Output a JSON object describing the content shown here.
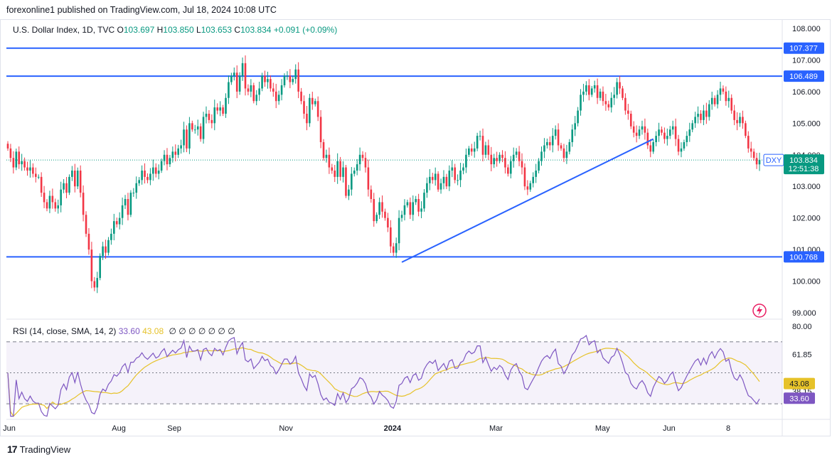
{
  "header": {
    "published": "forexonline1 published on TradingView.com, Jul 18, 2024 10:08 UTC"
  },
  "legend": {
    "symbol": "U.S. Dollar Index, 1D, TVC",
    "open_label": "O",
    "open": "103.697",
    "high_label": "H",
    "high": "103.850",
    "low_label": "L",
    "low": "103.653",
    "close_label": "C",
    "close": "103.834",
    "change": "+0.091 (+0.09%)"
  },
  "rsi_legend": {
    "label": "RSI (14, close, SMA, 14, 2)",
    "rsi": "33.60",
    "sma": "43.08",
    "na": "∅ ∅ ∅ ∅ ∅ ∅ ∅"
  },
  "footer": {
    "logo": "17",
    "brand": "TradingView"
  },
  "colors": {
    "up": "#089981",
    "down": "#f23645",
    "level": "#2962ff",
    "rsi": "#7e57c2",
    "sma": "#e6c229",
    "rsi_band": "#7e57c2"
  },
  "chart_data": [
    {
      "type": "candlestick",
      "title": "U.S. Dollar Index, 1D, TVC",
      "symbol": "DXY",
      "last_price": "103.834",
      "countdown": "12:51:38",
      "ylim": [
        99.0,
        108.0
      ],
      "y_ticks": [
        "108.000",
        "107.000",
        "106.000",
        "105.000",
        "104.000",
        "103.000",
        "102.000",
        "101.000",
        "100.000",
        "99.000"
      ],
      "x_ticks": [
        "Jun",
        "Aug",
        "Sep",
        "Nov",
        "2024",
        "Mar",
        "May",
        "Jun",
        "8"
      ],
      "horizontal_levels": [
        {
          "value": 107.377,
          "label": "107.377"
        },
        {
          "value": 106.489,
          "label": "106.489"
        },
        {
          "value": 100.768,
          "label": "100.768"
        }
      ],
      "trendline": {
        "from": {
          "date": "2023-12-28",
          "value": 100.6
        },
        "to": {
          "date": "2024-05-20",
          "value": 104.5
        }
      },
      "closes": [
        104.2,
        103.9,
        103.6,
        104.1,
        103.7,
        103.8,
        103.6,
        103.5,
        103.6,
        103.4,
        103.3,
        103.3,
        102.8,
        102.5,
        102.3,
        102.7,
        102.5,
        102.3,
        102.4,
        102.9,
        103.1,
        102.8,
        103.3,
        103.5,
        103.0,
        103.5,
        102.8,
        102.1,
        101.5,
        101.0,
        100.0,
        99.8,
        100.1,
        100.8,
        101.1,
        100.9,
        101.3,
        101.5,
        101.9,
        101.8,
        102.0,
        102.4,
        102.6,
        102.1,
        102.8,
        102.8,
        103.1,
        103.2,
        103.5,
        103.3,
        103.2,
        103.4,
        103.6,
        103.4,
        103.5,
        103.8,
        104.0,
        103.7,
        103.9,
        104.1,
        104.0,
        104.2,
        104.3,
        104.8,
        104.2,
        105.0,
        104.8,
        104.8,
        104.9,
        104.5,
        105.2,
        105.3,
        105.1,
        105.0,
        105.5,
        105.4,
        105.5,
        105.3,
        105.8,
        106.3,
        106.5,
        106.6,
        106.0,
        106.5,
        106.9,
        106.1,
        106.0,
        106.2,
        105.7,
        105.9,
        106.1,
        106.5,
        106.3,
        106.4,
        106.1,
        106.0,
        105.7,
        105.9,
        106.2,
        106.5,
        106.5,
        106.3,
        106.4,
        106.7,
        106.0,
        105.7,
        105.3,
        105.0,
        105.8,
        105.6,
        105.7,
        105.2,
        104.4,
        103.9,
        104.0,
        103.6,
        103.5,
        103.3,
        103.8,
        103.3,
        103.6,
        102.7,
        102.9,
        103.4,
        103.5,
        103.7,
        104.0,
        103.9,
        103.6,
        102.9,
        102.6,
        101.9,
        102.1,
        102.5,
        102.2,
        102.0,
        101.7,
        101.1,
        100.9,
        101.2,
        102.0,
        102.1,
        102.4,
        102.5,
        102.1,
        102.5,
        102.6,
        102.2,
        102.3,
        102.8,
        103.1,
        103.3,
        103.2,
        103.4,
        102.9,
        103.1,
        103.3,
        103.0,
        103.5,
        103.6,
        103.2,
        103.2,
        103.5,
        103.6,
        104.0,
        104.2,
        104.1,
        104.2,
        104.6,
        104.6,
        104.0,
        104.3,
        104.0,
        103.7,
        103.9,
        103.8,
        104.0,
        103.9,
        103.6,
        103.4,
        103.8,
        104.0,
        104.1,
        103.8,
        103.6,
        103.0,
        102.9,
        103.1,
        103.3,
        103.5,
        103.8,
        104.1,
        104.3,
        104.4,
        104.3,
        104.6,
        104.8,
        104.3,
        104.2,
        103.9,
        104.1,
        104.4,
        104.8,
        105.0,
        105.4,
        105.9,
        106.0,
        106.2,
        105.9,
        106.1,
        106.2,
        105.8,
        106.0,
        105.7,
        105.6,
        105.5,
        105.8,
        105.9,
        106.3,
        106.1,
        105.8,
        105.4,
        105.3,
        104.9,
        104.7,
        104.6,
        104.8,
        104.9,
        104.7,
        104.3,
        104.1,
        104.4,
        104.6,
        104.8,
        104.7,
        104.5,
        104.6,
        104.8,
        104.9,
        104.5,
        104.1,
        104.2,
        104.4,
        104.6,
        104.8,
        105.0,
        105.2,
        105.3,
        105.1,
        105.4,
        105.2,
        105.6,
        105.8,
        105.6,
        105.9,
        106.1,
        106.0,
        105.7,
        105.8,
        105.4,
        105.1,
        105.0,
        105.2,
        105.0,
        104.6,
        104.2,
        104.1,
        103.9,
        103.697,
        103.834
      ]
    },
    {
      "type": "line",
      "title": "RSI (14, close, SMA, 14, 2)",
      "ylim": [
        20.0,
        80.0
      ],
      "y_ticks": [
        "80.00",
        "61.85",
        "38.15"
      ],
      "levels": [
        70,
        50,
        30
      ],
      "series": [
        {
          "name": "RSI",
          "last": "33.60"
        },
        {
          "name": "SMA",
          "last": "43.08"
        }
      ]
    }
  ]
}
